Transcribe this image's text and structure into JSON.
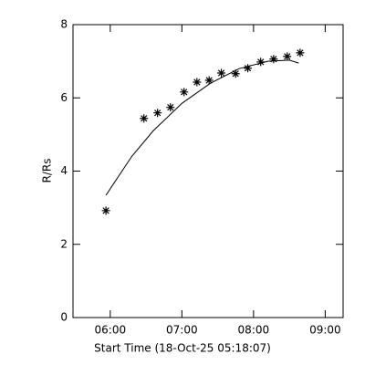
{
  "chart_data": {
    "type": "scatter",
    "x_label": "Start Time (18-Oct-25 05:18:07)",
    "y_label": "R/Rs",
    "xlim": [
      5.48,
      9.25
    ],
    "ylim": [
      0,
      8
    ],
    "xticks": [
      {
        "value": 6,
        "label": "06:00"
      },
      {
        "value": 7,
        "label": "07:00"
      },
      {
        "value": 8,
        "label": "08:00"
      },
      {
        "value": 9,
        "label": "09:00"
      }
    ],
    "yticks": [
      0,
      2,
      4,
      6,
      8
    ],
    "color": "#000000",
    "points": {
      "x": [
        5.94,
        6.47,
        6.66,
        6.84,
        7.03,
        7.21,
        7.38,
        7.55,
        7.75,
        7.92,
        8.1,
        8.28,
        8.47,
        8.65
      ],
      "y": [
        2.92,
        5.44,
        5.59,
        5.74,
        6.16,
        6.43,
        6.48,
        6.68,
        6.66,
        6.81,
        6.98,
        7.06,
        7.13,
        7.23
      ]
    },
    "fit": {
      "x": [
        5.94,
        6.3,
        6.6,
        7.0,
        7.4,
        7.8,
        8.2,
        8.5,
        8.63
      ],
      "y": [
        3.34,
        4.4,
        5.1,
        5.85,
        6.4,
        6.8,
        7.0,
        7.03,
        6.95
      ]
    }
  }
}
